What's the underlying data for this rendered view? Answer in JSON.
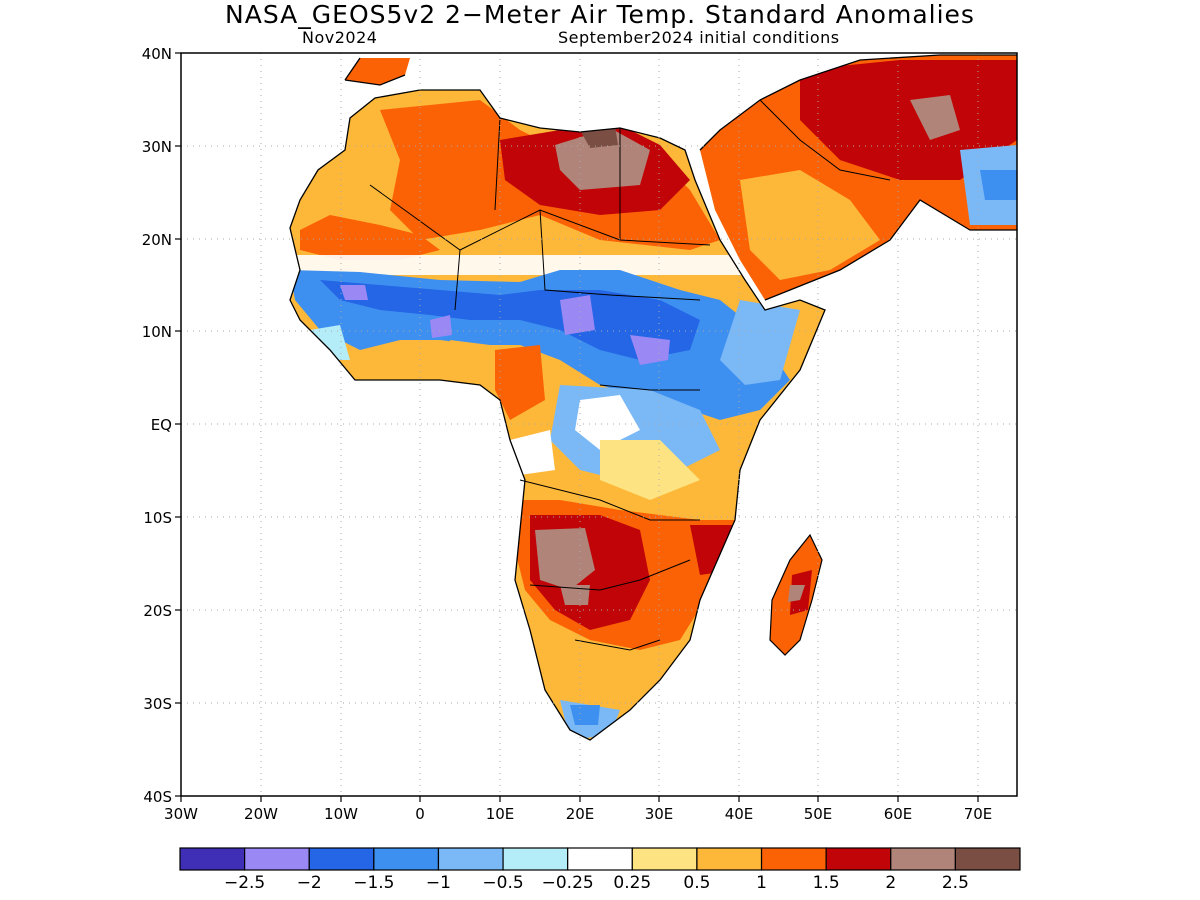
{
  "header": {
    "title": "NASA_GEOS5v2 2−Meter Air Temp. Standard Anomalies",
    "left_subtitle": "Nov2024",
    "right_subtitle": "September2024 initial conditions"
  },
  "map": {
    "region": "Africa",
    "lat_range": [
      -40,
      40
    ],
    "lon_range": [
      -30,
      75
    ],
    "lat_ticks": [
      "40N",
      "30N",
      "20N",
      "10N",
      "EQ",
      "10S",
      "20S",
      "30S",
      "40S"
    ],
    "lon_ticks": [
      "30W",
      "20W",
      "10W",
      "0",
      "10E",
      "20E",
      "30E",
      "40E",
      "50E",
      "60E",
      "70E"
    ]
  },
  "colorbar": {
    "colors": [
      "#3e2fb6",
      "#9a88f4",
      "#2466e6",
      "#3e90f0",
      "#7ab8f6",
      "#b4ecf8",
      "#ffffff",
      "#fde382",
      "#fdb839",
      "#fb6205",
      "#c00407",
      "#b08479",
      "#7a4e42"
    ],
    "labels": [
      "−2.5",
      "−2",
      "−1.5",
      "−1",
      "−0.5",
      "−0.25",
      "0.25",
      "0.5",
      "1",
      "1.5",
      "2",
      "2.5"
    ]
  }
}
